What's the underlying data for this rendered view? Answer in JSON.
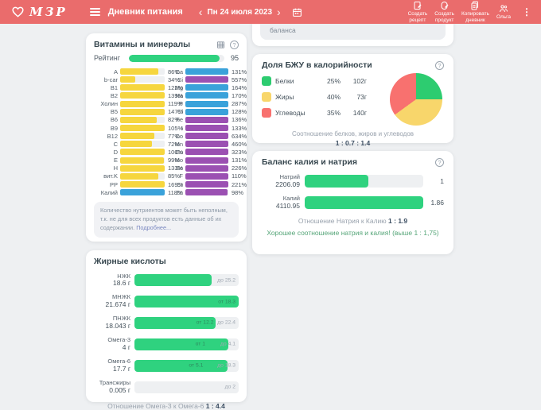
{
  "header": {
    "logo": "МЗР",
    "menu_title": "Дневник питания",
    "date": "Пн 24 июля 2023",
    "chevron_left": "‹",
    "chevron_right": "›",
    "kebab": "⋮",
    "actions": {
      "recipe": {
        "l1": "Создать",
        "l2": "рецепт"
      },
      "product": {
        "l1": "Создать",
        "l2": "продукт"
      },
      "copy": {
        "l1": "Копировать",
        "l2": "дневник"
      },
      "user": {
        "label": "Ольга"
      }
    }
  },
  "icons": {
    "help": "?"
  },
  "partial_card": {
    "text": "баланса"
  },
  "vitamins_card": {
    "title": "Витамины и минералы",
    "rating_label": "Рейтинг",
    "rating_value": "95",
    "rating_fill": 95,
    "left": [
      {
        "label": "A",
        "pct": "86%",
        "fill": 86,
        "color": "#f6d63e"
      },
      {
        "label": "b-car",
        "pct": "34%",
        "fill": 34,
        "color": "#f6d63e"
      },
      {
        "label": "B1",
        "pct": "122%",
        "fill": 100,
        "color": "#f6d63e"
      },
      {
        "label": "B2",
        "pct": "139%",
        "fill": 100,
        "color": "#f6d63e"
      },
      {
        "label": "Холин",
        "pct": "119%",
        "fill": 100,
        "color": "#f6d63e"
      },
      {
        "label": "B5",
        "pct": "147%",
        "fill": 100,
        "color": "#f6d63e"
      },
      {
        "label": "B6",
        "pct": "82%",
        "fill": 82,
        "color": "#f6d63e"
      },
      {
        "label": "B9",
        "pct": "105%",
        "fill": 100,
        "color": "#f6d63e"
      },
      {
        "label": "B12",
        "pct": "77%",
        "fill": 77,
        "color": "#f6d63e"
      },
      {
        "label": "C",
        "pct": "72%",
        "fill": 72,
        "color": "#f6d63e"
      },
      {
        "label": "D",
        "pct": "100%",
        "fill": 100,
        "color": "#f6d63e"
      },
      {
        "label": "E",
        "pct": "99%",
        "fill": 99,
        "color": "#f6d63e"
      },
      {
        "label": "H",
        "pct": "133%",
        "fill": 100,
        "color": "#f6d63e"
      },
      {
        "label": "вит.K",
        "pct": "85%",
        "fill": 85,
        "color": "#f6d63e"
      },
      {
        "label": "PP",
        "pct": "169%",
        "fill": 100,
        "color": "#f6d63e"
      },
      {
        "label": "Калий",
        "pct": "118%",
        "fill": 100,
        "color": "#3aa2da"
      }
    ],
    "right": [
      {
        "label": "Ca",
        "pct": "131%",
        "fill": 100,
        "color": "#3aa2da"
      },
      {
        "label": "Si",
        "pct": "557%",
        "fill": 100,
        "color": "#9b50b2"
      },
      {
        "label": "Mg",
        "pct": "164%",
        "fill": 100,
        "color": "#3aa2da"
      },
      {
        "label": "Na",
        "pct": "170%",
        "fill": 100,
        "color": "#3aa2da"
      },
      {
        "label": "P",
        "pct": "287%",
        "fill": 100,
        "color": "#3aa2da"
      },
      {
        "label": "Cl",
        "pct": "128%",
        "fill": 100,
        "color": "#3aa2da"
      },
      {
        "label": "Fe",
        "pct": "136%",
        "fill": 100,
        "color": "#9b50b2"
      },
      {
        "label": "I",
        "pct": "133%",
        "fill": 100,
        "color": "#9b50b2"
      },
      {
        "label": "Co",
        "pct": "634%",
        "fill": 100,
        "color": "#9b50b2"
      },
      {
        "label": "Mn",
        "pct": "460%",
        "fill": 100,
        "color": "#9b50b2"
      },
      {
        "label": "Cu",
        "pct": "323%",
        "fill": 100,
        "color": "#9b50b2"
      },
      {
        "label": "Mo",
        "pct": "131%",
        "fill": 100,
        "color": "#9b50b2"
      },
      {
        "label": "Se",
        "pct": "226%",
        "fill": 100,
        "color": "#9b50b2"
      },
      {
        "label": "F",
        "pct": "110%",
        "fill": 100,
        "color": "#9b50b2"
      },
      {
        "label": "Cr",
        "pct": "221%",
        "fill": 100,
        "color": "#9b50b2"
      },
      {
        "label": "Zn",
        "pct": "98%",
        "fill": 98,
        "color": "#9b50b2"
      }
    ],
    "note": "Количество нутриентов может быть неполным, т.к. не для всех продуктов есть данные об их содержании. ",
    "note_link": "Подробнее..."
  },
  "bju_card": {
    "title": "Доля БЖУ в калорийности",
    "legend": [
      {
        "name": "Белки",
        "pct": "25%",
        "grams": "102г",
        "color": "#2dcc70"
      },
      {
        "name": "Жиры",
        "pct": "40%",
        "grams": "73г",
        "color": "#f8d66b"
      },
      {
        "name": "Углеводы",
        "pct": "35%",
        "grams": "140г",
        "color": "#f8716f"
      }
    ],
    "footer": "Соотношение белков, жиров и углеводов",
    "ratio": "1 : 0.7 : 1.4",
    "chart_data": {
      "type": "pie",
      "labels": [
        "Белки",
        "Жиры",
        "Углеводы"
      ],
      "values": [
        25,
        40,
        35
      ],
      "colors": [
        "#2dcc70",
        "#f8d66b",
        "#f8716f"
      ]
    }
  },
  "balance_card": {
    "title": "Баланс калия и натрия",
    "rows": [
      {
        "name": "Натрий",
        "value": "2206.09",
        "fill": 54,
        "ratio": "1"
      },
      {
        "name": "Калий",
        "value": "4110.95",
        "fill": 100,
        "ratio": "1.86"
      }
    ],
    "ratio_label": "Отношение Натрия к Калию ",
    "ratio_value": "1 : 1.9",
    "verdict": "Хорошее соотношение натрия и калия! (выше 1 : 1,75)"
  },
  "fatty_card": {
    "title": "Жирные кислоты",
    "rows": [
      {
        "name": "НЖК",
        "value": "18.6 г",
        "fill": 74,
        "lim1": "",
        "lim1_pos": 0,
        "lim1_on": "on-track",
        "lim2": "до 25.2",
        "lim2_pos": 97,
        "lim2_on": "on-track"
      },
      {
        "name": "МНЖК",
        "value": "21.674 г",
        "fill": 100,
        "lim1": "",
        "lim1_pos": 0,
        "lim1_on": "on-fill",
        "lim2": "от 18.3",
        "lim2_pos": 97,
        "lim2_on": "on-fill"
      },
      {
        "name": "ПНЖК",
        "value": "18.043 г",
        "fill": 78,
        "lim1": "от 12.2",
        "lim1_pos": 76,
        "lim1_on": "on-fill",
        "lim2": "до 22.4",
        "lim2_pos": 97,
        "lim2_on": "on-track"
      },
      {
        "name": "Омега-3",
        "value": "4 г",
        "fill": 90,
        "lim1": "от 1",
        "lim1_pos": 68,
        "lim1_on": "on-fill",
        "lim2": "до 4.1",
        "lim2_pos": 97,
        "lim2_on": "on-track"
      },
      {
        "name": "Омега-6",
        "value": "17.7 г",
        "fill": 89,
        "lim1": "от 5.1",
        "lim1_pos": 66,
        "lim1_on": "on-fill",
        "lim2": "до 18.3",
        "lim2_pos": 97,
        "lim2_on": "on-track"
      },
      {
        "name": "Трансжиры",
        "value": "0.005 г",
        "fill": 0,
        "lim1": "",
        "lim1_pos": 0,
        "lim1_on": "on-track",
        "lim2": "до 2",
        "lim2_pos": 97,
        "lim2_on": "on-track"
      }
    ],
    "footer_label": "Отношение Омега-3 к Омега-6 ",
    "footer_ratio": "1 : 4.4"
  }
}
